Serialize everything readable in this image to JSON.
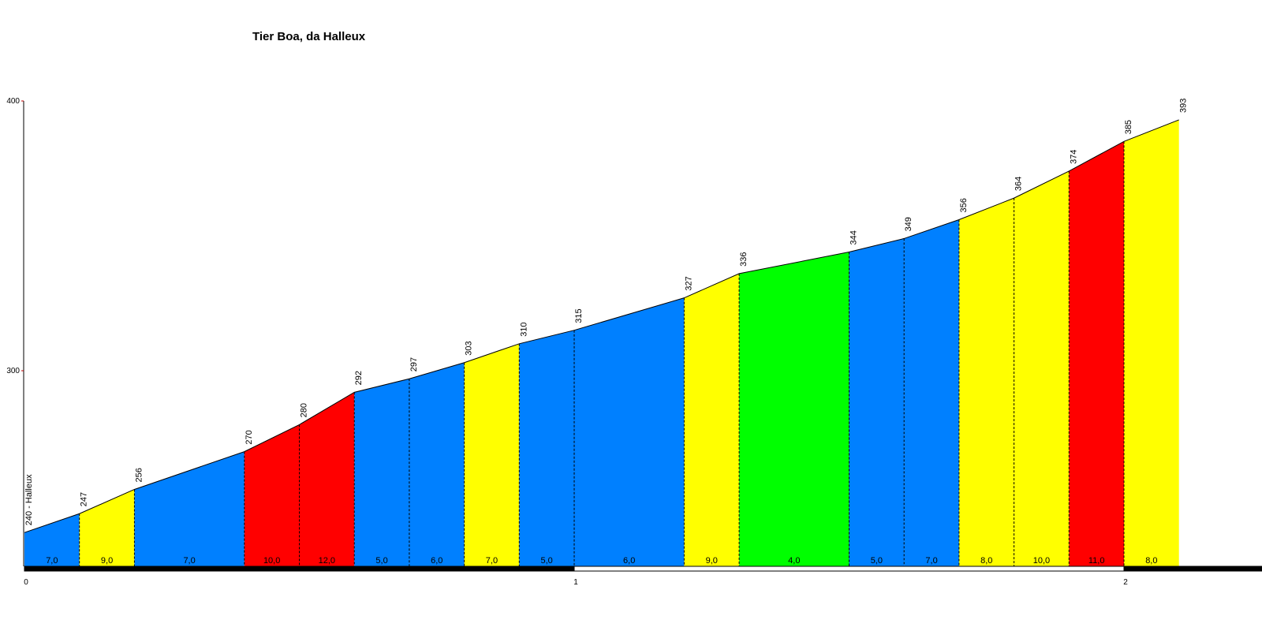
{
  "chart_data": {
    "type": "area",
    "title": "Tier Boa, da Halleux",
    "xlabel": "",
    "ylabel": "",
    "x_unit_ticks": [
      "0",
      "1",
      "2"
    ],
    "y_ticks": [
      "300",
      "400"
    ],
    "ylim": [
      232,
      400
    ],
    "xlim": [
      0,
      2.2
    ],
    "start_label": "240 - Halleux",
    "distances_km": [
      0,
      0.1,
      0.2,
      0.4,
      0.5,
      0.6,
      0.7,
      0.8,
      0.9,
      1.0,
      1.2,
      1.3,
      1.5,
      1.6,
      1.7,
      1.8,
      1.9,
      2.0,
      2.1
    ],
    "elevations": [
      240,
      247,
      256,
      270,
      280,
      292,
      297,
      303,
      310,
      315,
      327,
      336,
      344,
      349,
      356,
      364,
      374,
      385,
      393
    ],
    "elevation_labels": [
      "240 - Halleux",
      "247",
      "256",
      "270",
      "280",
      "292",
      "297",
      "303",
      "310",
      "315",
      "327",
      "336",
      "344",
      "349",
      "356",
      "364",
      "374",
      "385",
      "393"
    ],
    "segment_gradients": [
      "7,0",
      "9,0",
      "7,0",
      "10,0",
      "12,0",
      "5,0",
      "6,0",
      "7,0",
      "5,0",
      "6,0",
      "9,0",
      "4,0",
      "5,0",
      "7,0",
      "8,0",
      "10,0",
      "11,0",
      "8,0"
    ],
    "segment_colors": [
      "#0080ff",
      "#ffff00",
      "#0080ff",
      "#ff0000",
      "#ff0000",
      "#0080ff",
      "#0080ff",
      "#ffff00",
      "#0080ff",
      "#0080ff",
      "#ffff00",
      "#00ff00",
      "#0080ff",
      "#0080ff",
      "#ffff00",
      "#ffff00",
      "#ff0000",
      "#ffff00"
    ],
    "grid": false,
    "legend": "none"
  }
}
